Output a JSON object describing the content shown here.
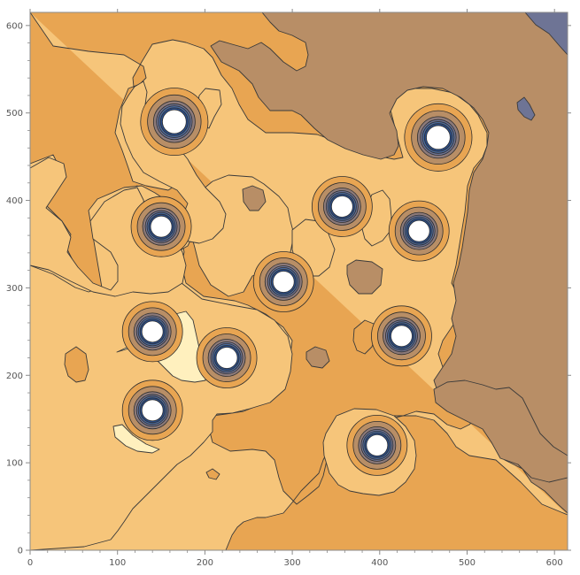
{
  "chart_data": {
    "type": "contour",
    "title": "",
    "xlabel": "",
    "ylabel": "",
    "xlim": [
      0,
      615
    ],
    "ylim": [
      0,
      615
    ],
    "x_ticks": [
      0,
      100,
      200,
      300,
      400,
      500,
      600
    ],
    "y_ticks": [
      0,
      100,
      200,
      300,
      400,
      500,
      600
    ],
    "x_tick_labels": [
      "0",
      "100",
      "200",
      "300",
      "400",
      "500",
      "600"
    ],
    "y_tick_labels": [
      "0",
      "100",
      "200",
      "300",
      "400",
      "500",
      "600"
    ],
    "colors": {
      "level_1": "#F6C57A",
      "level_0": "#FFF0BE",
      "level_2": "#E8A552",
      "level_3": "#B88E66",
      "level_4": "#8C7A7A",
      "level_5": "#6E7495",
      "level_6": "#4A6A9E",
      "level_7": "#2A4E8C"
    },
    "wells": [
      {
        "x": 165,
        "y": 490
      },
      {
        "x": 467,
        "y": 472
      },
      {
        "x": 150,
        "y": 370
      },
      {
        "x": 357,
        "y": 393
      },
      {
        "x": 445,
        "y": 365
      },
      {
        "x": 290,
        "y": 307
      },
      {
        "x": 140,
        "y": 250
      },
      {
        "x": 225,
        "y": 220
      },
      {
        "x": 425,
        "y": 245
      },
      {
        "x": 140,
        "y": 160
      },
      {
        "x": 397,
        "y": 120
      }
    ]
  }
}
